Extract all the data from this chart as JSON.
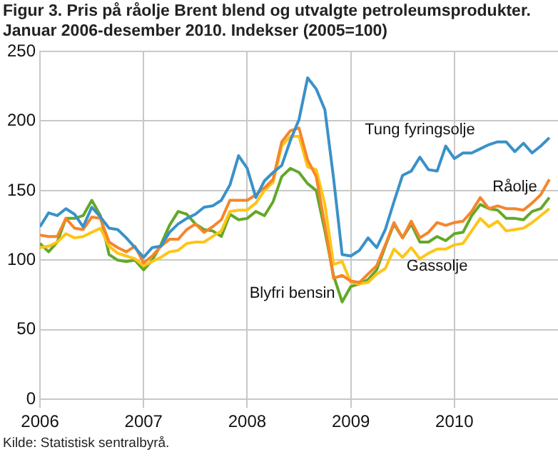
{
  "chart_data": {
    "type": "line",
    "title": "Figur 3. Pris på råolje Brent blend og utvalgte petroleumsprodukter. Januar 2006-desember 2010. Indekser (2005=100)",
    "annotations": [
      "Kilde: Statistisk sentralbyrå."
    ],
    "x": [
      "2006-01",
      "2006-02",
      "2006-03",
      "2006-04",
      "2006-05",
      "2006-06",
      "2006-07",
      "2006-08",
      "2006-09",
      "2006-10",
      "2006-11",
      "2006-12",
      "2007-01",
      "2007-02",
      "2007-03",
      "2007-04",
      "2007-05",
      "2007-06",
      "2007-07",
      "2007-08",
      "2007-09",
      "2007-10",
      "2007-11",
      "2007-12",
      "2008-01",
      "2008-02",
      "2008-03",
      "2008-04",
      "2008-05",
      "2008-06",
      "2008-07",
      "2008-08",
      "2008-09",
      "2008-10",
      "2008-11",
      "2008-12",
      "2009-01",
      "2009-02",
      "2009-03",
      "2009-04",
      "2009-05",
      "2009-06",
      "2009-07",
      "2009-08",
      "2009-09",
      "2009-10",
      "2009-11",
      "2009-12",
      "2010-01",
      "2010-02",
      "2010-03",
      "2010-04",
      "2010-05",
      "2010-06",
      "2010-07",
      "2010-08",
      "2010-09",
      "2010-10",
      "2010-11",
      "2010-12"
    ],
    "series": [
      {
        "name": "Tung fyringsolje",
        "color": "#3a91c8",
        "values": [
          124,
          134,
          132,
          137,
          133,
          124,
          138,
          131,
          123,
          122,
          116,
          109,
          102,
          109,
          110,
          120,
          126,
          130,
          133,
          138,
          139,
          143,
          154,
          175,
          166,
          145,
          157,
          163,
          168,
          186,
          201,
          231,
          223,
          208,
          159,
          104,
          103,
          107,
          116,
          109,
          122,
          142,
          161,
          164,
          174,
          165,
          164,
          182,
          173,
          177,
          177,
          180,
          183,
          185,
          185,
          178,
          184,
          177,
          182,
          188
        ]
      },
      {
        "name": "Råolje",
        "color": "#f5862b",
        "values": [
          118,
          117,
          117,
          130,
          123,
          122,
          131,
          130,
          113,
          109,
          106,
          110,
          98,
          103,
          110,
          115,
          115,
          122,
          126,
          120,
          124,
          129,
          143,
          143,
          143,
          147,
          152,
          158,
          185,
          193,
          195,
          172,
          160,
          125,
          87,
          89,
          85,
          84,
          90,
          96,
          111,
          127,
          116,
          128,
          116,
          120,
          127,
          125,
          127,
          128,
          135,
          145,
          137,
          139,
          137,
          137,
          136,
          141,
          147,
          158
        ]
      },
      {
        "name": "Gassolje",
        "color": "#fec516",
        "values": [
          109,
          110,
          113,
          119,
          116,
          117,
          120,
          123,
          110,
          105,
          103,
          101,
          96,
          99,
          102,
          106,
          107,
          112,
          113,
          113,
          117,
          121,
          135,
          136,
          136,
          141,
          150,
          156,
          182,
          189,
          189,
          167,
          165,
          140,
          97,
          99,
          84,
          83,
          84,
          90,
          94,
          108,
          102,
          109,
          101,
          105,
          108,
          108,
          111,
          112,
          121,
          130,
          124,
          128,
          121,
          122,
          123,
          127,
          132,
          137
        ]
      },
      {
        "name": "Blyfri bensin",
        "color": "#62a829",
        "values": [
          112,
          106,
          113,
          130,
          130,
          132,
          143,
          132,
          104,
          100,
          99,
          100,
          93,
          100,
          111,
          125,
          135,
          133,
          126,
          122,
          121,
          117,
          133,
          129,
          130,
          135,
          132,
          142,
          160,
          166,
          163,
          155,
          150,
          121,
          89,
          70,
          81,
          83,
          86,
          93,
          110,
          126,
          116,
          126,
          113,
          113,
          117,
          114,
          119,
          120,
          132,
          140,
          137,
          136,
          130,
          130,
          129,
          135,
          137,
          145
        ]
      }
    ],
    "xlim": [
      "2006-01",
      "2011-01"
    ],
    "xticks": [
      {
        "value": "2006-01",
        "label": "2006"
      },
      {
        "value": "2007-01",
        "label": "2007"
      },
      {
        "value": "2008-01",
        "label": "2008"
      },
      {
        "value": "2009-01",
        "label": "2009"
      },
      {
        "value": "2010-01",
        "label": "2010"
      }
    ],
    "ylim": [
      0,
      250
    ],
    "yticks": [
      0,
      50,
      100,
      150,
      200,
      250
    ],
    "grid": true,
    "legend": false,
    "marker": "none",
    "line_style": "solid"
  }
}
